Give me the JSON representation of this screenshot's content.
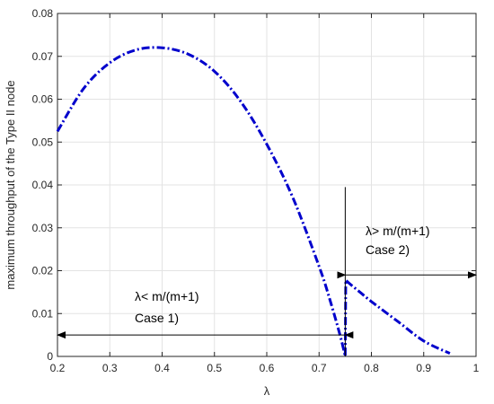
{
  "chart_data": {
    "type": "line",
    "title": "",
    "xlabel": "λ",
    "ylabel": "maximum throughput of the Type II node",
    "xlim": [
      0.2,
      1
    ],
    "ylim": [
      0,
      0.08
    ],
    "xticks": [
      "0.2",
      "0.3",
      "0.4",
      "0.5",
      "0.6",
      "0.7",
      "0.8",
      "0.9",
      "1"
    ],
    "yticks": [
      "0",
      "0.01",
      "0.02",
      "0.03",
      "0.04",
      "0.05",
      "0.06",
      "0.07",
      "0.08"
    ],
    "grid": true,
    "series": [
      {
        "line_style": "dash-dot",
        "color": "#0000cc",
        "x": [
          0.2,
          0.25,
          0.3,
          0.35,
          0.4,
          0.45,
          0.5,
          0.55,
          0.6,
          0.65,
          0.7,
          0.72,
          0.74,
          0.75,
          0.751,
          0.76,
          0.78,
          0.8,
          0.85,
          0.9,
          0.95
        ],
        "y": [
          0.0525,
          0.0625,
          0.0685,
          0.0715,
          0.072,
          0.0705,
          0.0665,
          0.0595,
          0.0495,
          0.037,
          0.021,
          0.0135,
          0.005,
          0.0,
          0.0178,
          0.0168,
          0.0148,
          0.0128,
          0.0082,
          0.0036,
          0.0007
        ]
      }
    ],
    "annotations": {
      "left_text_1": "λ< m/(m+1)",
      "left_text_2": "Case 1)",
      "right_text_1": "λ> m/(m+1)",
      "right_text_2": "Case 2)",
      "left_arrow": {
        "x_from": 0.75,
        "x_to": 0.2,
        "y": 0.005
      },
      "right_arrow": {
        "x_from": 0.75,
        "x_to": 1,
        "y": 0.019
      },
      "divider": {
        "x": 0.75,
        "y_from": 0,
        "y_to": 0.0395
      }
    }
  }
}
